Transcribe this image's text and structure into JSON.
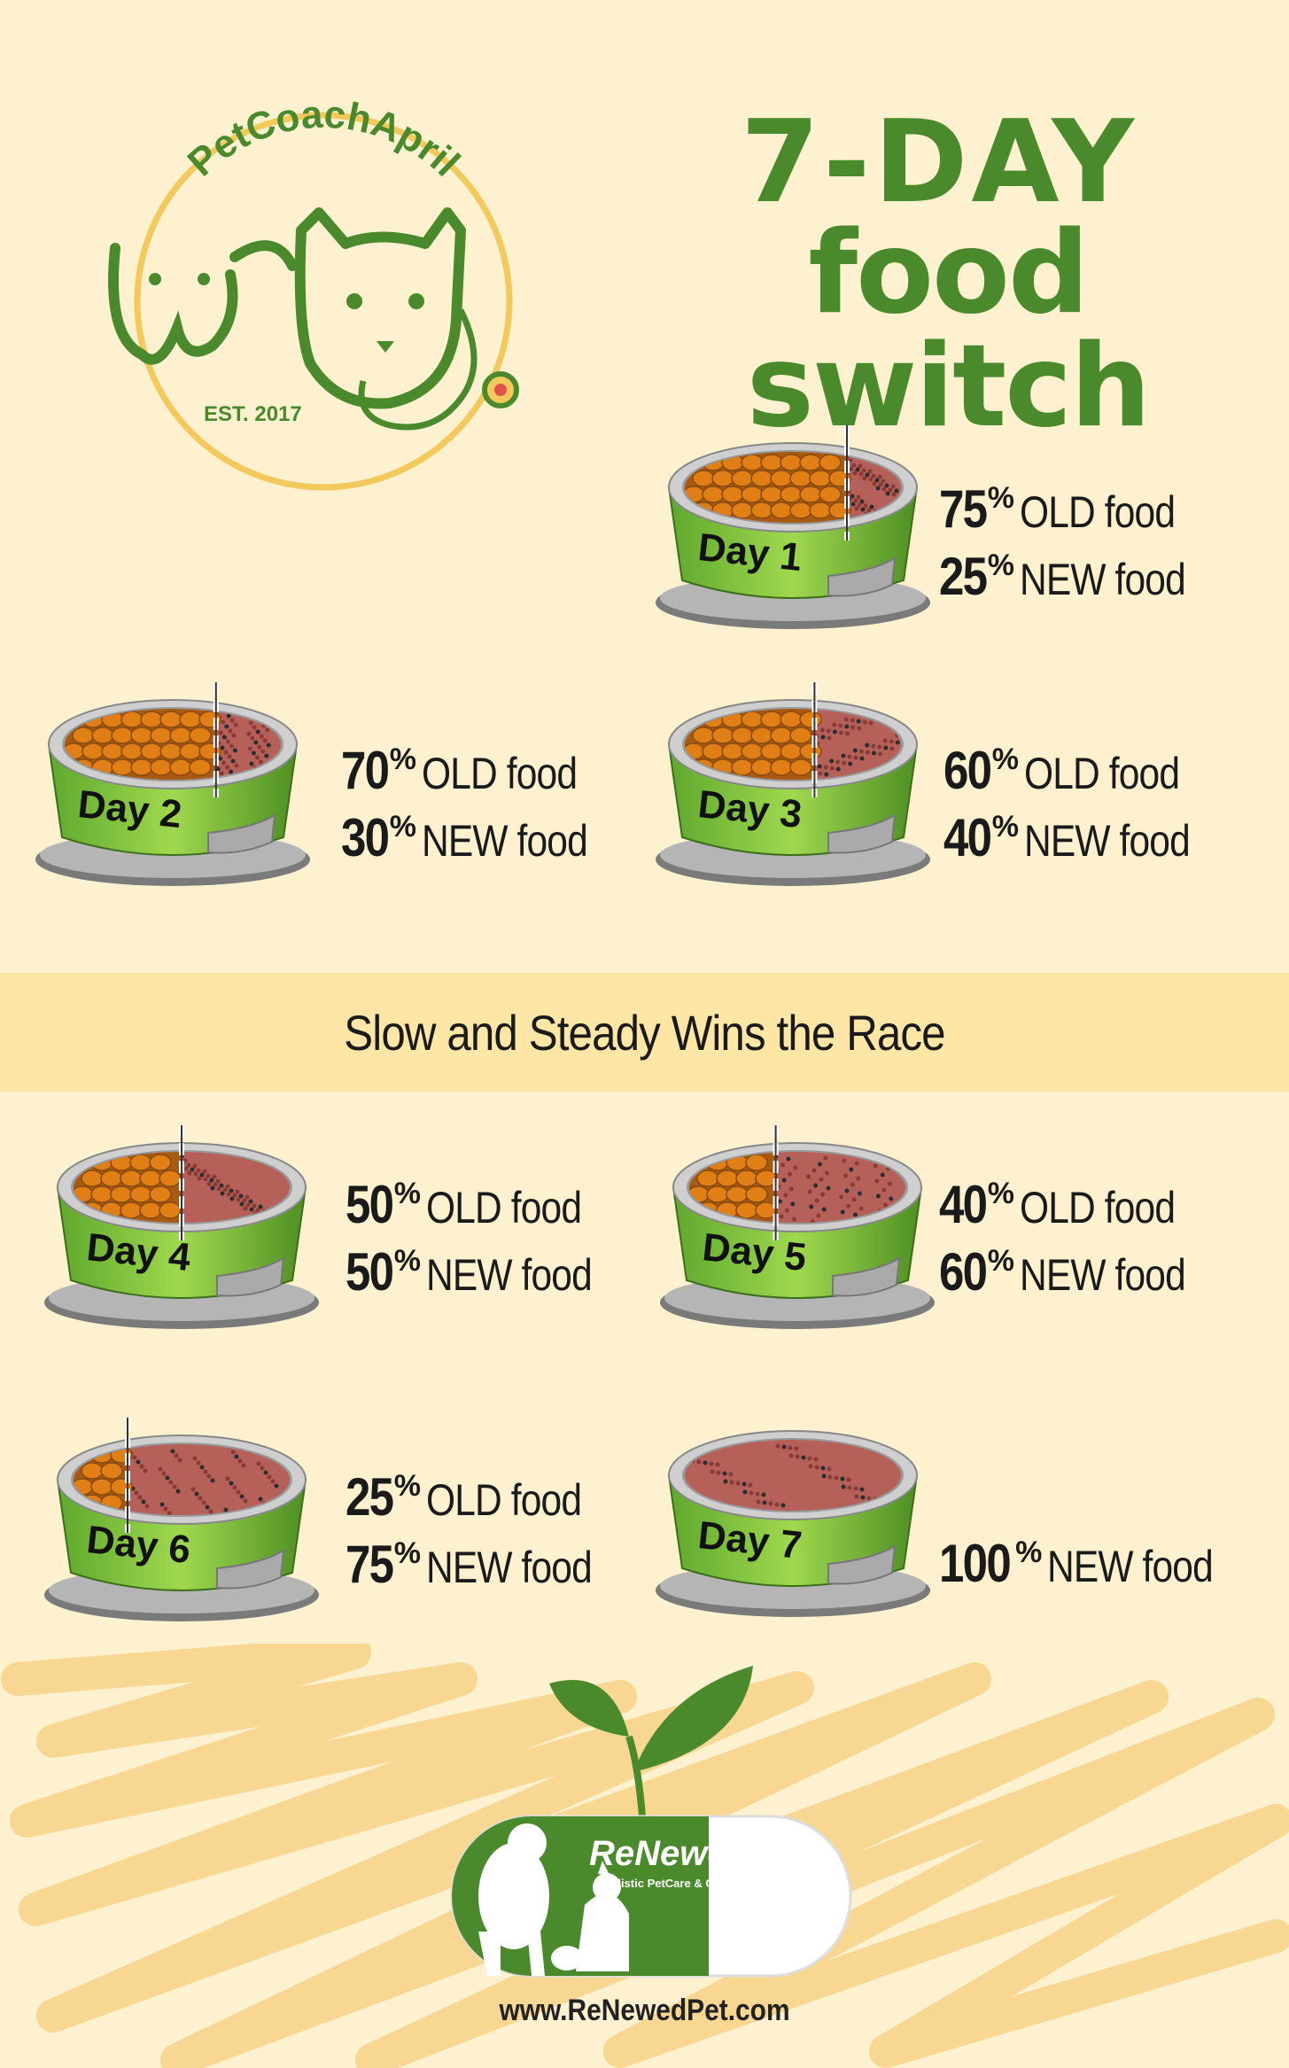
{
  "logo": {
    "arc_text": "PetCoachApril",
    "est": "EST. 2017"
  },
  "title": {
    "line1": "7-DAY",
    "line2": "food switch"
  },
  "colors": {
    "background": "#fdf1d0",
    "banner": "#fde6a6",
    "title_green": "#4a8a2c",
    "bowl_green": "#7cc242",
    "logo_yellow": "#f3c95b"
  },
  "days": [
    {
      "label": "Day 1",
      "old_pct": "75",
      "new_pct": "25",
      "old_fraction": 0.75
    },
    {
      "label": "Day 2",
      "old_pct": "70",
      "new_pct": "30",
      "old_fraction": 0.7
    },
    {
      "label": "Day 3",
      "old_pct": "60",
      "new_pct": "40",
      "old_fraction": 0.6
    },
    {
      "label": "Day 4",
      "old_pct": "50",
      "new_pct": "50",
      "old_fraction": 0.5
    },
    {
      "label": "Day 5",
      "old_pct": "40",
      "new_pct": "60",
      "old_fraction": 0.4
    },
    {
      "label": "Day 6",
      "old_pct": "25",
      "new_pct": "75",
      "old_fraction": 0.25
    },
    {
      "label": "Day 7",
      "old_pct": "",
      "new_pct": "100",
      "old_fraction": 0.0
    }
  ],
  "text": {
    "old_food": "OLD food",
    "new_food": "NEW food",
    "percent_sign": "%"
  },
  "banner": "Slow and Steady Wins the Race",
  "footer": {
    "brand": "ReNewedPet",
    "tagline": "Holistic PetCare & Consults",
    "url": "www.ReNewedPet.com"
  }
}
